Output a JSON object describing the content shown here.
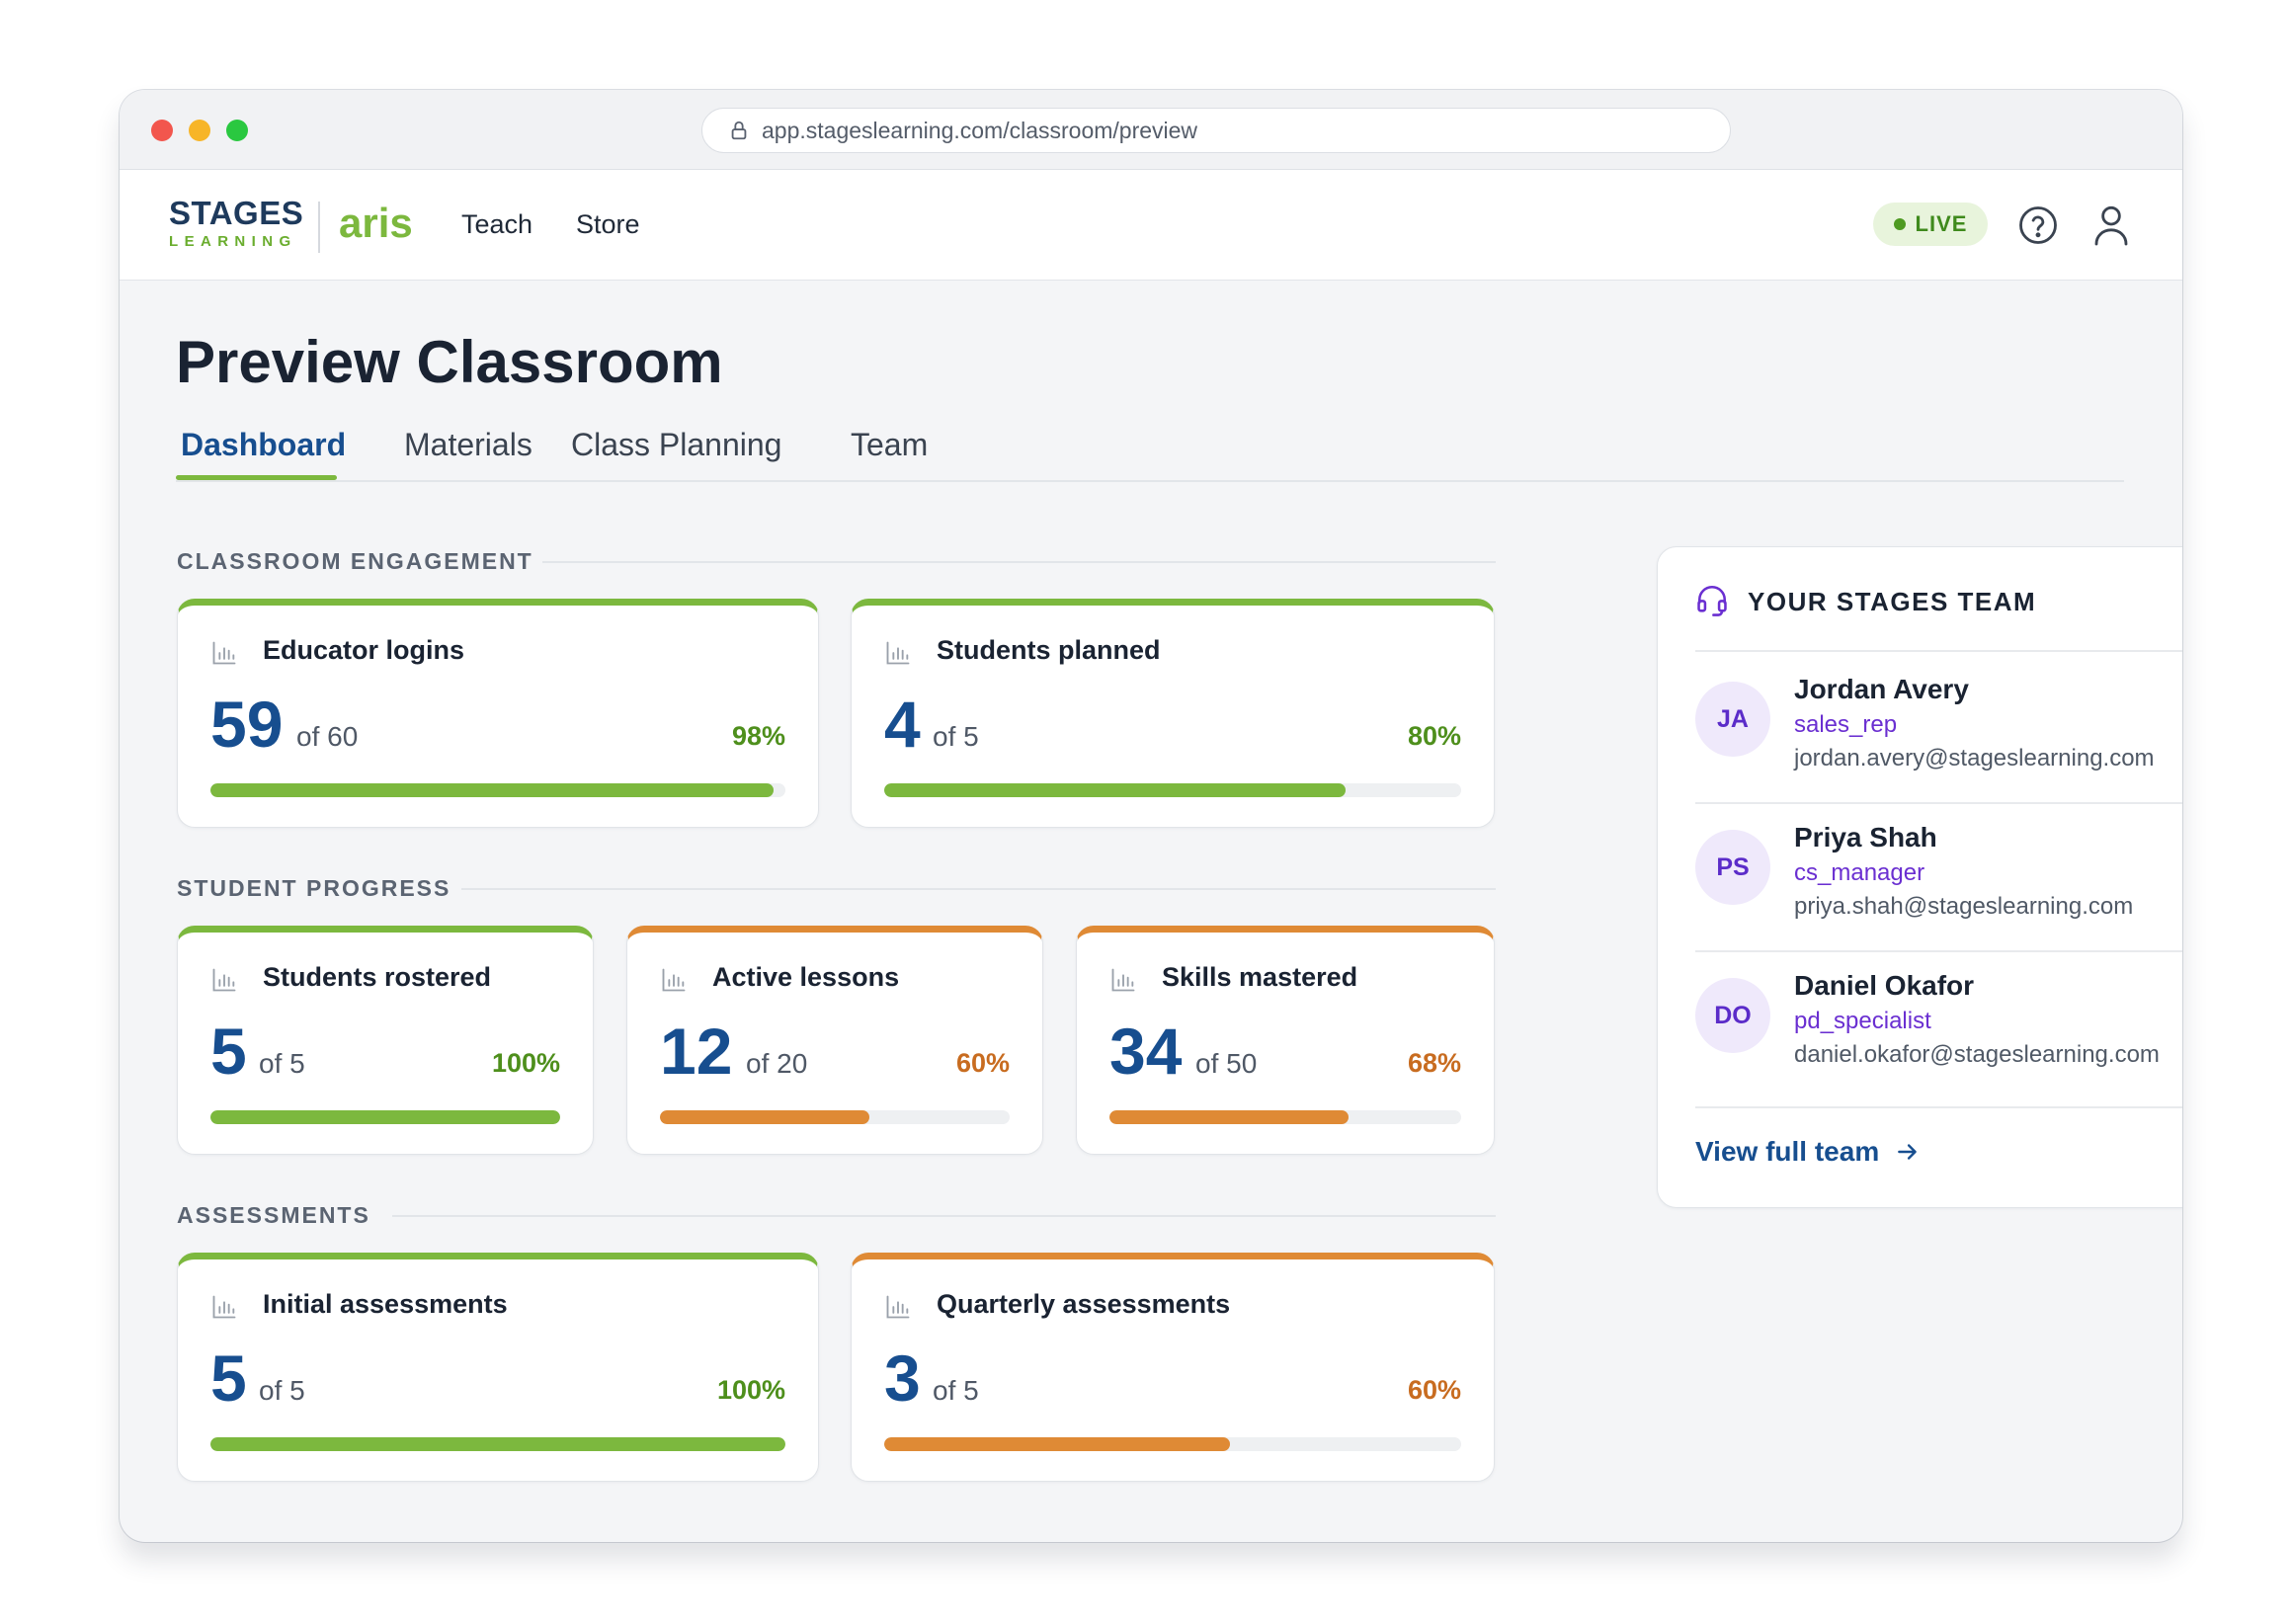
{
  "browser": {
    "url": "app.stageslearning.com/classroom/preview"
  },
  "nav": {
    "brand_top": "STAGES",
    "brand_bottom": "LEARNING",
    "product": "aris",
    "links": [
      "Teach",
      "Store"
    ],
    "live_label": "LIVE"
  },
  "page": {
    "title": "Preview Classroom",
    "tabs": [
      "Dashboard",
      "Materials",
      "Class Planning",
      "Team"
    ],
    "active_tab": "Dashboard"
  },
  "sections": {
    "engagement": {
      "label": "CLASSROOM ENGAGEMENT",
      "cards": [
        {
          "title": "Educator logins",
          "value": "59",
          "of": "of 60",
          "pct": "98%",
          "fraction": 0.98,
          "color": "green"
        },
        {
          "title": "Students planned",
          "value": "4",
          "of": "of 5",
          "pct": "80%",
          "fraction": 0.8,
          "color": "green"
        }
      ]
    },
    "progress": {
      "label": "STUDENT PROGRESS",
      "cards": [
        {
          "title": "Students rostered",
          "value": "5",
          "of": "of 5",
          "pct": "100%",
          "fraction": 1.0,
          "color": "green"
        },
        {
          "title": "Active lessons",
          "value": "12",
          "of": "of 20",
          "pct": "60%",
          "fraction": 0.6,
          "color": "orange"
        },
        {
          "title": "Skills mastered",
          "value": "34",
          "of": "of 50",
          "pct": "68%",
          "fraction": 0.68,
          "color": "orange"
        }
      ]
    },
    "assessments": {
      "label": "ASSESSMENTS",
      "cards": [
        {
          "title": "Initial assessments",
          "value": "5",
          "of": "of 5",
          "pct": "100%",
          "fraction": 1.0,
          "color": "green"
        },
        {
          "title": "Quarterly assessments",
          "value": "3",
          "of": "of 5",
          "pct": "60%",
          "fraction": 0.6,
          "color": "orange"
        }
      ]
    }
  },
  "team": {
    "title": "YOUR STAGES TEAM",
    "members": [
      {
        "initials": "JA",
        "name": "Jordan Avery",
        "role": "sales_rep",
        "email": "jordan.avery@stageslearning.com"
      },
      {
        "initials": "PS",
        "name": "Priya Shah",
        "role": "cs_manager",
        "email": "priya.shah@stageslearning.com"
      },
      {
        "initials": "DO",
        "name": "Daniel Okafor",
        "role": "pd_specialist",
        "email": "daniel.okafor@stageslearning.com"
      }
    ],
    "view_full_label": "View full team"
  },
  "colors": {
    "accent_green": "#7cb83e",
    "accent_orange": "#df8a35",
    "brand_blue": "#174e8f",
    "role_purple": "#6a2fd1"
  },
  "icons": {
    "lock": "lock-icon",
    "help": "help-circle-icon",
    "user": "user-icon",
    "chart": "bar-chart-icon",
    "headset": "headset-icon",
    "arrow": "arrow-right-icon"
  }
}
